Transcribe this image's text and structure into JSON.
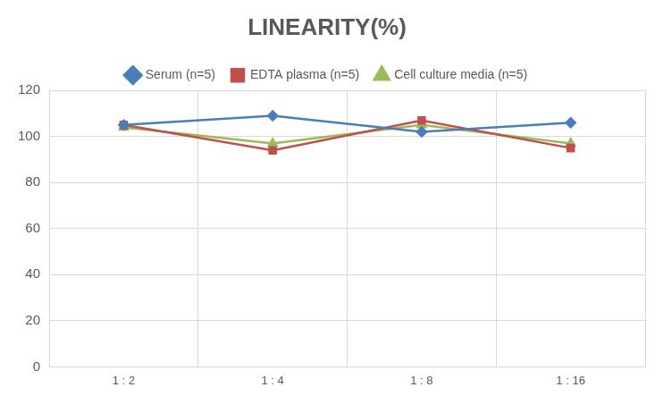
{
  "chart_data": {
    "type": "line",
    "title": "LINEARITY(%)",
    "categories": [
      "1 : 2",
      "1 : 4",
      "1 : 8",
      "1 : 16"
    ],
    "series": [
      {
        "name": "Serum (n=5)",
        "color": "#4a7ebb",
        "marker": "diamond",
        "values": [
          105,
          109,
          102,
          106
        ]
      },
      {
        "name": "EDTA plasma (n=5)",
        "color": "#c0504d",
        "marker": "square",
        "values": [
          105,
          94,
          107,
          95
        ]
      },
      {
        "name": "Cell culture media (n=5)",
        "color": "#9bbb59",
        "marker": "triangle",
        "values": [
          104,
          97,
          105,
          97
        ]
      }
    ],
    "ylim": [
      0,
      120
    ],
    "yticks": [
      0,
      20,
      40,
      60,
      80,
      100,
      120
    ],
    "grid": true,
    "legend": "top"
  }
}
